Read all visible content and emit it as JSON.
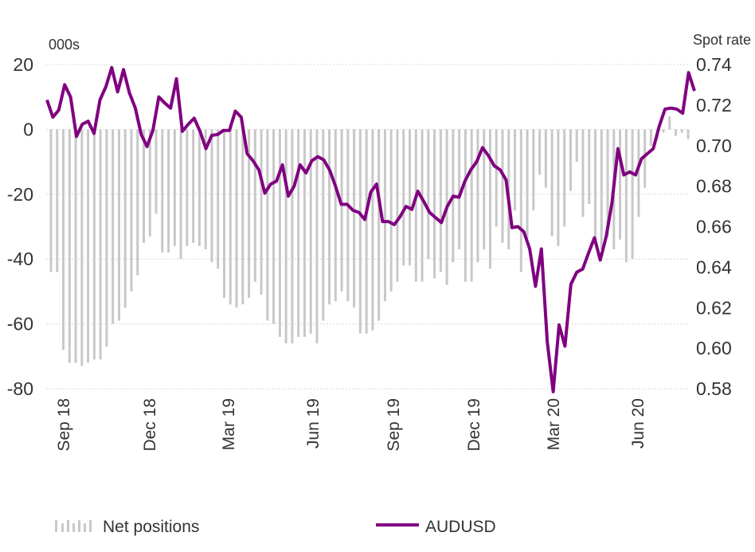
{
  "chart_data": {
    "type": "bar+line",
    "left_axis": {
      "label": "000s",
      "ticks": [
        20,
        0,
        -20,
        -40,
        -60,
        -80
      ],
      "ylim": [
        -80,
        20
      ]
    },
    "right_axis": {
      "label": "Spot rate",
      "ticks": [
        "0.74",
        "0.72",
        "0.70",
        "0.68",
        "0.66",
        "0.64",
        "0.62",
        "0.60",
        "0.58"
      ],
      "ylim": [
        0.58,
        0.74
      ]
    },
    "x_tick_labels": [
      "Sep 18",
      "Dec 18",
      "Mar 19",
      "Jun 19",
      "Sep 19",
      "Dec 19",
      "Mar 20",
      "Jun 20"
    ],
    "grid": "horizontal dotted",
    "legend_position": "bottom",
    "series": [
      {
        "name": "Net positions",
        "type": "bar",
        "axis": "left",
        "color": "#c8c8c8",
        "values": [
          -44,
          -44,
          -68,
          -72,
          -72,
          -73,
          -72,
          -71,
          -71,
          -67,
          -60,
          -59,
          -55,
          -50,
          -45,
          -35,
          -33,
          -26,
          -38,
          -38,
          -36,
          -40,
          -36,
          -35,
          -36,
          -37,
          -41,
          -43,
          -52,
          -54,
          -55,
          -54,
          -52,
          -47,
          -51,
          -59,
          -60,
          -64,
          -66,
          -66,
          -64,
          -64,
          -63,
          -66,
          -59,
          -54,
          -53,
          -50,
          -53,
          -55,
          -63,
          -63,
          -62,
          -59,
          -53,
          -50,
          -47,
          -42,
          -42,
          -47,
          -47,
          -40,
          -46,
          -44,
          -48,
          -41,
          -37,
          -47,
          -47,
          -41,
          -37,
          -43,
          -30,
          -35,
          -37,
          -25,
          -44,
          -34,
          -25,
          -14,
          -18,
          -33,
          -36,
          -30,
          -19,
          -10,
          -27,
          -23,
          -35,
          -37,
          -33,
          -37,
          -34,
          -41,
          -40,
          -27,
          -18,
          -5,
          -3,
          -1,
          4,
          -2,
          -1,
          -3
        ]
      },
      {
        "name": "AUDUSD",
        "type": "line",
        "axis": "right",
        "color": "#800080",
        "values": [
          0.7225,
          0.714,
          0.7175,
          0.73,
          0.724,
          0.7045,
          0.7105,
          0.712,
          0.706,
          0.7225,
          0.729,
          0.7385,
          0.7265,
          0.7375,
          0.726,
          0.7185,
          0.7055,
          0.6995,
          0.7075,
          0.724,
          0.721,
          0.7185,
          0.733,
          0.707,
          0.7105,
          0.7135,
          0.707,
          0.6985,
          0.705,
          0.7055,
          0.7075,
          0.7075,
          0.717,
          0.714,
          0.696,
          0.6925,
          0.688,
          0.6765,
          0.681,
          0.6825,
          0.6905,
          0.675,
          0.68,
          0.6905,
          0.6865,
          0.6925,
          0.6945,
          0.693,
          0.688,
          0.68,
          0.671,
          0.671,
          0.668,
          0.667,
          0.6635,
          0.677,
          0.681,
          0.6625,
          0.6625,
          0.661,
          0.665,
          0.67,
          0.6685,
          0.6775,
          0.6725,
          0.667,
          0.6645,
          0.662,
          0.67,
          0.675,
          0.6745,
          0.6825,
          0.688,
          0.692,
          0.699,
          0.695,
          0.69,
          0.688,
          0.683,
          0.6595,
          0.66,
          0.6575,
          0.649,
          0.6305,
          0.649,
          0.603,
          0.5785,
          0.6115,
          0.601,
          0.6315,
          0.6375,
          0.639,
          0.647,
          0.6545,
          0.6435,
          0.655,
          0.672,
          0.6985,
          0.6855,
          0.687,
          0.6855,
          0.6935,
          0.696,
          0.6985,
          0.7095,
          0.718,
          0.7185,
          0.718,
          0.716,
          0.736,
          0.727
        ]
      }
    ]
  },
  "legend": {
    "bar_label": "Net positions",
    "line_label": "AUDUSD"
  }
}
